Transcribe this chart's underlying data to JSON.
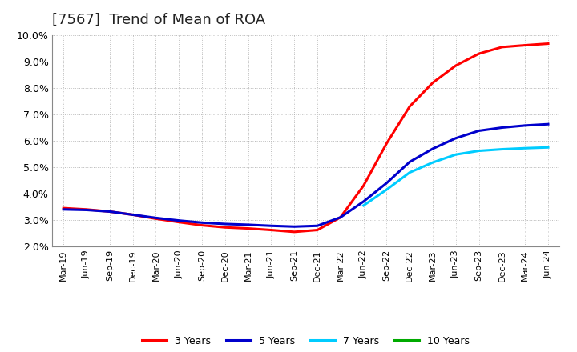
{
  "title": "[7567]  Trend of Mean of ROA",
  "ylim": [
    0.02,
    0.1
  ],
  "yticks": [
    0.02,
    0.03,
    0.04,
    0.05,
    0.06,
    0.07,
    0.08,
    0.09,
    0.1
  ],
  "ytick_labels": [
    "2.0%",
    "3.0%",
    "4.0%",
    "5.0%",
    "6.0%",
    "7.0%",
    "8.0%",
    "9.0%",
    "10.0%"
  ],
  "x_labels": [
    "Mar-19",
    "Jun-19",
    "Sep-19",
    "Dec-19",
    "Mar-20",
    "Jun-20",
    "Sep-20",
    "Dec-20",
    "Mar-21",
    "Jun-21",
    "Sep-21",
    "Dec-21",
    "Mar-22",
    "Jun-22",
    "Sep-22",
    "Dec-22",
    "Mar-23",
    "Jun-23",
    "Sep-23",
    "Dec-23",
    "Mar-24",
    "Jun-24"
  ],
  "series": [
    {
      "name": "3 Years",
      "color": "#ff0000",
      "values": [
        0.0345,
        0.034,
        0.0332,
        0.032,
        0.0305,
        0.0292,
        0.028,
        0.0272,
        0.0268,
        0.0262,
        0.0255,
        0.0262,
        0.031,
        0.043,
        0.059,
        0.073,
        0.082,
        0.0885,
        0.093,
        0.0955,
        0.0962,
        0.0968
      ]
    },
    {
      "name": "5 Years",
      "color": "#0000cc",
      "values": [
        0.034,
        0.0338,
        0.0332,
        0.032,
        0.0308,
        0.0298,
        0.029,
        0.0285,
        0.0282,
        0.0278,
        0.0275,
        0.0278,
        0.031,
        0.037,
        0.044,
        0.052,
        0.057,
        0.061,
        0.0638,
        0.065,
        0.0658,
        0.0663
      ]
    },
    {
      "name": "7 Years",
      "color": "#00ccff",
      "values": [
        null,
        null,
        null,
        null,
        null,
        null,
        null,
        null,
        null,
        null,
        null,
        null,
        null,
        0.0355,
        0.0415,
        0.048,
        0.0518,
        0.0548,
        0.0562,
        0.0568,
        0.0572,
        0.0575
      ]
    },
    {
      "name": "10 Years",
      "color": "#00aa00",
      "values": [
        null,
        null,
        null,
        null,
        null,
        null,
        null,
        null,
        null,
        null,
        null,
        null,
        null,
        null,
        null,
        null,
        null,
        null,
        null,
        null,
        null,
        null
      ]
    }
  ],
  "background_color": "#ffffff",
  "grid_color": "#aaaaaa",
  "title_fontsize": 13,
  "linewidth": 2.2
}
